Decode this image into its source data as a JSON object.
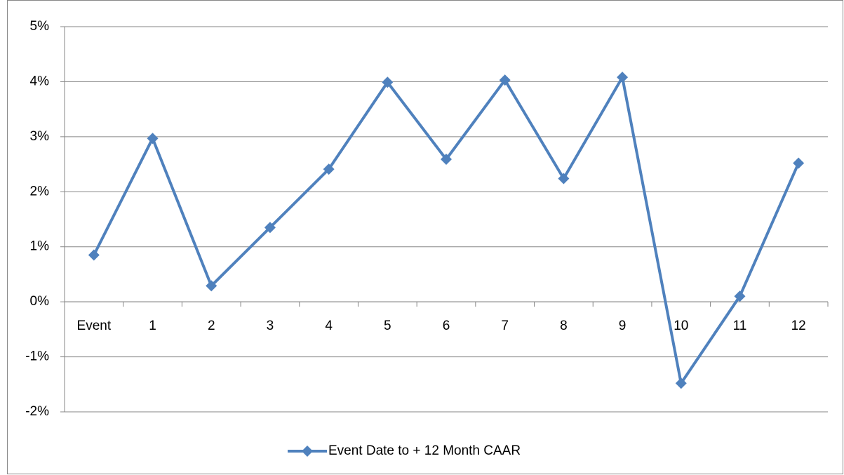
{
  "chart_data": {
    "type": "line",
    "categories": [
      "Event",
      "1",
      "2",
      "3",
      "4",
      "5",
      "6",
      "7",
      "8",
      "9",
      "10",
      "11",
      "12"
    ],
    "series": [
      {
        "name": "Event Date to + 12 Month CAAR",
        "color": "#4f81bd",
        "values": [
          0.85,
          2.97,
          0.29,
          1.35,
          2.41,
          3.99,
          2.59,
          4.03,
          2.24,
          4.08,
          -1.48,
          0.1,
          2.52
        ]
      }
    ],
    "ylim": [
      -2,
      5
    ],
    "yticks": [
      {
        "value": -2,
        "label": "-2%"
      },
      {
        "value": -1,
        "label": "-1%"
      },
      {
        "value": 0,
        "label": "0%"
      },
      {
        "value": 1,
        "label": "1%"
      },
      {
        "value": 2,
        "label": "2%"
      },
      {
        "value": 3,
        "label": "3%"
      },
      {
        "value": 4,
        "label": "4%"
      },
      {
        "value": 5,
        "label": "5%"
      }
    ],
    "grid": true,
    "legend": "bottom"
  }
}
